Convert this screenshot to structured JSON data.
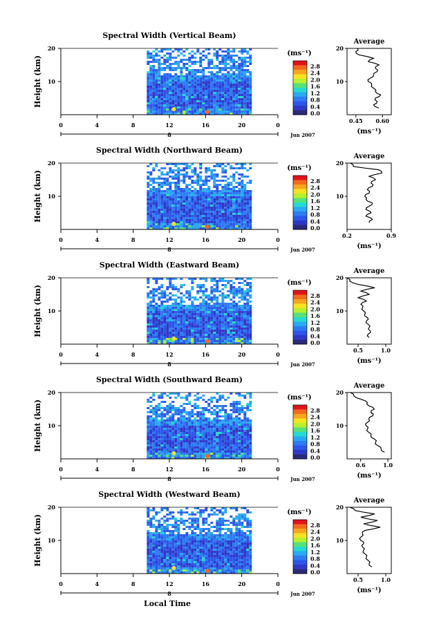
{
  "figure": {
    "x_axis_label": "Local Time",
    "date_label": "Jun 2007",
    "unit_label": "(ms⁻¹)",
    "average_title": "Average",
    "height_label": "Height (km)"
  },
  "panels": [
    {
      "title": "Spectral Width (Vertical Beam)"
    },
    {
      "title": "Spectral Width (Northward Beam)"
    },
    {
      "title": "Spectral Width (Eastward Beam)"
    },
    {
      "title": "Spectral Width (Southward Beam)"
    },
    {
      "title": "Spectral Width (Westward Beam)"
    }
  ],
  "colorbar": {
    "ticks": [
      "2.8",
      "2.4",
      "2.0",
      "1.6",
      "1.2",
      "0.8",
      "0.4",
      "0.0"
    ],
    "colors": [
      "#e0141a",
      "#f26b1d",
      "#f7a51f",
      "#f5e321",
      "#b6f02f",
      "#55e27a",
      "#27d9d0",
      "#2aa9f2",
      "#2d7cf2",
      "#2d56e8",
      "#3038c8",
      "#2b2a78"
    ]
  },
  "chart_data": [
    {
      "type": "heatmap",
      "title": "Spectral Width (Vertical Beam)",
      "xlabel": "Local Time",
      "ylabel": "Height (km)",
      "x_ticks": [
        "0",
        "4",
        "8",
        "12",
        "16",
        "20",
        "0"
      ],
      "x_sub_label": "8",
      "y_ticks": [
        "20",
        "10"
      ],
      "xlim": [
        0,
        24
      ],
      "ylim": [
        0,
        20
      ],
      "data_x_range": [
        9.5,
        21
      ],
      "cb_ticks": [
        "2.8",
        "2.4",
        "2.0",
        "1.6",
        "1.2",
        "0.8",
        "0.4",
        "0.0"
      ],
      "average": {
        "title": "Average",
        "xlabel": "(ms⁻¹)",
        "x_ticks": [
          "0.45",
          "0.60"
        ],
        "xlim": [
          0.4,
          0.65
        ],
        "height": [
          2,
          3,
          4,
          5,
          6,
          7,
          8,
          9,
          10,
          11,
          12,
          13,
          14,
          15,
          16,
          17,
          18,
          19,
          20
        ],
        "values": [
          0.58,
          0.55,
          0.57,
          0.56,
          0.59,
          0.56,
          0.55,
          0.54,
          0.52,
          0.53,
          0.55,
          0.57,
          0.56,
          0.58,
          0.52,
          0.55,
          0.47,
          0.45,
          0.46
        ]
      }
    },
    {
      "type": "heatmap",
      "title": "Spectral Width (Northward Beam)",
      "xlabel": "Local Time",
      "ylabel": "Height (km)",
      "x_ticks": [
        "0",
        "4",
        "8",
        "12",
        "16",
        "20",
        "0"
      ],
      "x_sub_label": "8",
      "y_ticks": [
        "20",
        "10"
      ],
      "xlim": [
        0,
        24
      ],
      "ylim": [
        0,
        20
      ],
      "data_x_range": [
        9.5,
        21
      ],
      "cb_ticks": [
        "2.8",
        "2.4",
        "2.0",
        "1.6",
        "1.2",
        "0.8",
        "0.4",
        "0.0"
      ],
      "average": {
        "title": "Average",
        "xlabel": "(ms⁻¹)",
        "x_ticks": [
          "0.2",
          "0.9"
        ],
        "xlim": [
          0.2,
          0.9
        ],
        "height": [
          2,
          3,
          4,
          5,
          6,
          7,
          8,
          9,
          10,
          11,
          12,
          13,
          14,
          15,
          16,
          17,
          18,
          19,
          20
        ],
        "values": [
          0.55,
          0.6,
          0.5,
          0.58,
          0.5,
          0.55,
          0.6,
          0.5,
          0.48,
          0.55,
          0.52,
          0.6,
          0.58,
          0.65,
          0.55,
          0.75,
          0.7,
          0.3,
          0.25
        ]
      }
    },
    {
      "type": "heatmap",
      "title": "Spectral Width (Eastward Beam)",
      "xlabel": "Local Time",
      "ylabel": "Height (km)",
      "x_ticks": [
        "0",
        "4",
        "8",
        "12",
        "16",
        "20",
        "0"
      ],
      "x_sub_label": "8",
      "y_ticks": [
        "20",
        "10"
      ],
      "xlim": [
        0,
        24
      ],
      "ylim": [
        0,
        20
      ],
      "data_x_range": [
        9.5,
        21
      ],
      "cb_ticks": [
        "2.8",
        "2.4",
        "2.0",
        "1.6",
        "1.2",
        "0.8",
        "0.4",
        "0.0"
      ],
      "average": {
        "title": "Average",
        "xlabel": "(ms⁻¹)",
        "x_ticks": [
          "0.5",
          "1.0"
        ],
        "xlim": [
          0.3,
          1.1
        ],
        "height": [
          2,
          3,
          4,
          5,
          6,
          7,
          8,
          9,
          10,
          11,
          12,
          13,
          14,
          15,
          16,
          17,
          18,
          19,
          20
        ],
        "values": [
          0.7,
          0.68,
          0.72,
          0.7,
          0.68,
          0.65,
          0.67,
          0.62,
          0.6,
          0.58,
          0.55,
          0.65,
          0.5,
          0.7,
          0.55,
          0.8,
          0.5,
          0.35,
          0.3
        ]
      }
    },
    {
      "type": "heatmap",
      "title": "Spectral Width (Southward Beam)",
      "xlabel": "Local Time",
      "ylabel": "Height (km)",
      "x_ticks": [
        "0",
        "4",
        "8",
        "12",
        "16",
        "20",
        "0"
      ],
      "x_sub_label": "8",
      "y_ticks": [
        "20",
        "10"
      ],
      "xlim": [
        0,
        24
      ],
      "ylim": [
        0,
        20
      ],
      "data_x_range": [
        9.5,
        21
      ],
      "cb_ticks": [
        "2.8",
        "2.4",
        "2.0",
        "1.6",
        "1.2",
        "0.8",
        "0.4",
        "0.0"
      ],
      "average": {
        "title": "Average",
        "xlabel": "(ms⁻¹)",
        "x_ticks": [
          "0.6",
          "1.0"
        ],
        "xlim": [
          0.4,
          1.05
        ],
        "height": [
          2,
          3,
          4,
          5,
          6,
          7,
          8,
          9,
          10,
          11,
          12,
          13,
          14,
          15,
          16,
          17,
          18,
          19,
          20
        ],
        "values": [
          0.95,
          0.9,
          0.85,
          0.82,
          0.8,
          0.75,
          0.72,
          0.7,
          0.68,
          0.7,
          0.72,
          0.78,
          0.75,
          0.8,
          0.72,
          0.7,
          0.6,
          0.5,
          0.45
        ]
      }
    },
    {
      "type": "heatmap",
      "title": "Spectral Width (Westward Beam)",
      "xlabel": "Local Time",
      "ylabel": "Height (km)",
      "x_ticks": [
        "0",
        "4",
        "8",
        "12",
        "16",
        "20",
        "0"
      ],
      "x_sub_label": "8",
      "y_ticks": [
        "20",
        "10"
      ],
      "xlim": [
        0,
        24
      ],
      "ylim": [
        0,
        20
      ],
      "data_x_range": [
        9.5,
        21
      ],
      "cb_ticks": [
        "2.8",
        "2.4",
        "2.0",
        "1.6",
        "1.2",
        "0.8",
        "0.4",
        "0.0"
      ],
      "average": {
        "title": "Average",
        "xlabel": "(ms⁻¹)",
        "x_ticks": [
          "0.5",
          "1.0"
        ],
        "xlim": [
          0.3,
          1.1
        ],
        "height": [
          2,
          3,
          4,
          5,
          6,
          7,
          8,
          9,
          10,
          11,
          12,
          13,
          14,
          15,
          16,
          17,
          18,
          19,
          20
        ],
        "values": [
          0.75,
          0.7,
          0.68,
          0.65,
          0.62,
          0.6,
          0.58,
          0.6,
          0.55,
          0.55,
          0.58,
          0.62,
          0.9,
          0.6,
          0.85,
          0.55,
          0.8,
          0.45,
          0.35
        ]
      }
    }
  ]
}
